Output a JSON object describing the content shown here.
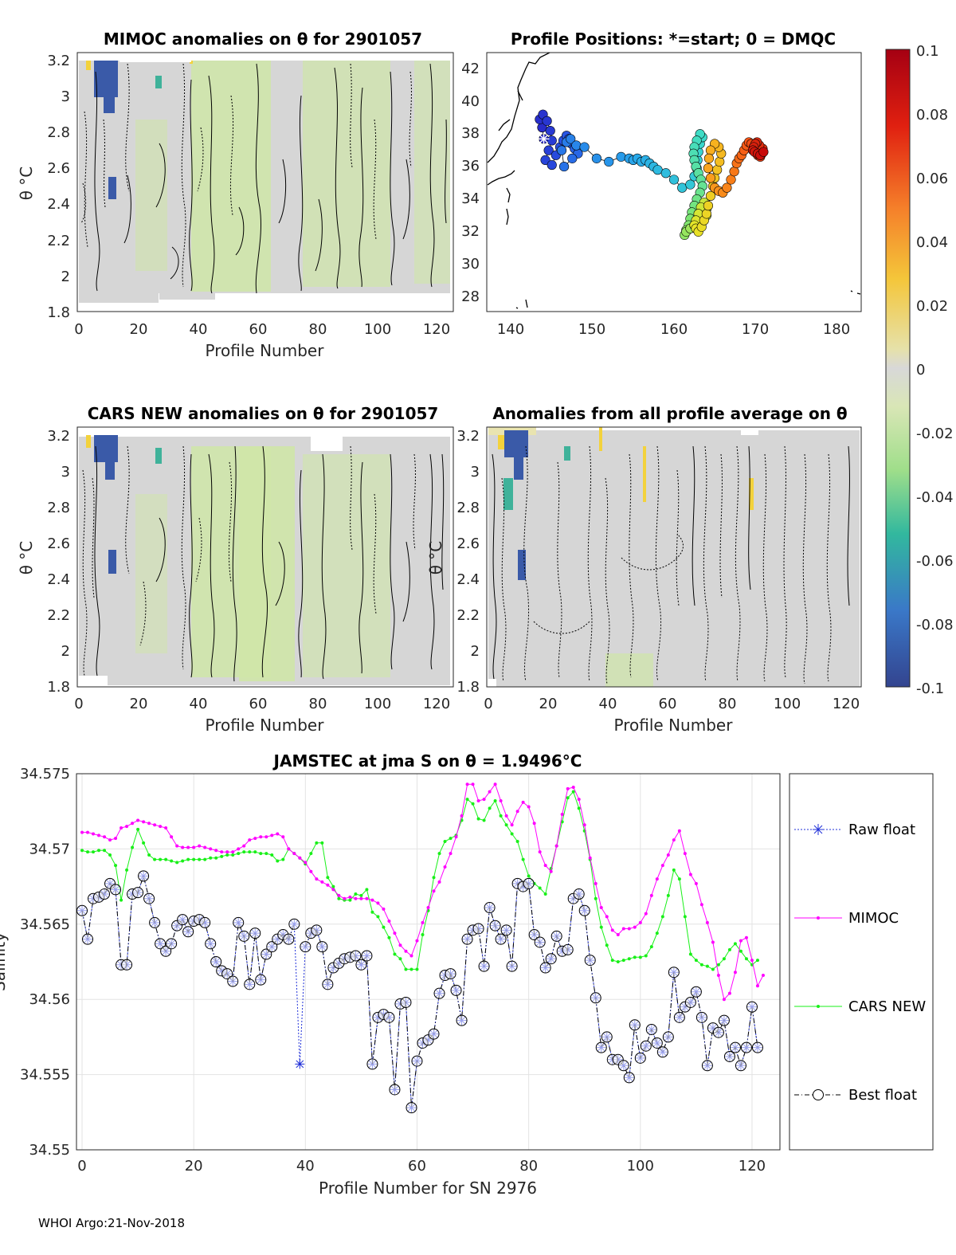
{
  "colors": {
    "raw": "#1f2fd8",
    "mimoc": "#ff00ff",
    "cars": "#18f018",
    "best": "#000050",
    "anomaly_bg": "#d6d6d6",
    "anomaly_green": "#cfe6a8"
  },
  "footer": "WHOI Argo:21-Nov-2018",
  "panels": {
    "mimoc": {
      "title": "MIMOC anomalies on θ  for 2901057",
      "ylabel": "θ °C",
      "xlabel": "Profile Number",
      "xticks": [
        "0",
        "20",
        "40",
        "60",
        "80",
        "100",
        "120"
      ],
      "yticks": [
        "1.8",
        "2",
        "2.2",
        "2.4",
        "2.6",
        "2.8",
        "3",
        "3.2"
      ]
    },
    "positions": {
      "title": "Profile Positions: *=start; 0 = DMQC",
      "xticks": [
        "140",
        "150",
        "160",
        "170",
        "180"
      ],
      "yticks": [
        "28",
        "30",
        "32",
        "34",
        "36",
        "38",
        "40",
        "42"
      ]
    },
    "cars": {
      "title": "CARS NEW anomalies on θ for 2901057",
      "ylabel": "θ °C",
      "xlabel": "Profile Number",
      "xticks": [
        "0",
        "20",
        "40",
        "60",
        "80",
        "100",
        "120"
      ],
      "yticks": [
        "1.8",
        "2",
        "2.2",
        "2.4",
        "2.6",
        "2.8",
        "3",
        "3.2"
      ]
    },
    "allavg": {
      "title": "Anomalies from all profile average on θ",
      "ylabel": "θ °C",
      "xlabel": "Profile Number",
      "xticks": [
        "0",
        "20",
        "40",
        "60",
        "80",
        "100",
        "120"
      ],
      "yticks": [
        "1.8",
        "2",
        "2.2",
        "2.4",
        "2.6",
        "2.8",
        "3",
        "3.2"
      ]
    },
    "colorbar": {
      "ticks": [
        "0.1",
        "0.08",
        "0.06",
        "0.04",
        "0.02",
        "0",
        "-0.02",
        "-0.04",
        "-0.06",
        "-0.08",
        "-0.1"
      ]
    }
  },
  "chart_data": {
    "type": "line",
    "title": "JAMSTEC at jma S on θ = 1.9496°C",
    "xlabel": "Profile Number for SN 2976",
    "ylabel": "Salinity",
    "xlim": [
      -1,
      125
    ],
    "ylim": [
      34.55,
      34.575
    ],
    "xticks": [
      "0",
      "20",
      "40",
      "60",
      "80",
      "100",
      "120"
    ],
    "yticks": [
      "34.55",
      "34.555",
      "34.56",
      "34.565",
      "34.57",
      "34.575"
    ],
    "grid": true,
    "legend": [
      "Raw float",
      "MIMOC",
      "CARS NEW",
      "Best float"
    ],
    "legend_position": "outside-right",
    "x_start": 0,
    "series": [
      {
        "name": "Raw float",
        "values": [
          34.5659,
          34.564,
          34.5667,
          34.5668,
          34.567,
          34.5677,
          34.5673,
          34.5623,
          34.5623,
          34.567,
          34.5671,
          34.5682,
          34.5667,
          34.5651,
          34.5637,
          34.5632,
          34.5637,
          34.5649,
          34.5653,
          34.5645,
          34.5652,
          34.5653,
          34.5651,
          34.5637,
          34.5625,
          34.5619,
          34.5617,
          34.5612,
          34.5651,
          34.5642,
          34.561,
          34.5644,
          34.5613,
          34.563,
          34.5635,
          34.564,
          34.5643,
          34.564,
          34.565,
          34.5557,
          34.5635,
          34.5644,
          34.5646,
          34.5635,
          34.561,
          34.5621,
          34.5624,
          34.5627,
          34.5628,
          34.5629,
          34.5623,
          34.5629,
          34.5557,
          34.5588,
          34.559,
          34.5588,
          34.554,
          34.5597,
          34.5598,
          34.5528,
          34.5559,
          34.5571,
          34.5573,
          34.5577,
          34.5604,
          34.5616,
          34.5617,
          34.5606,
          34.5586,
          34.564,
          34.5646,
          34.5647,
          34.5622,
          34.5661,
          34.5649,
          34.564,
          34.5646,
          34.5622,
          34.5677,
          34.5675,
          34.5677,
          34.5643,
          34.5638,
          34.5621,
          34.5627,
          34.5642,
          34.5632,
          34.5633,
          34.5667,
          34.567,
          34.5659,
          34.5626,
          34.5601,
          34.5568,
          34.5575,
          34.556,
          34.556,
          34.5556,
          34.5548,
          34.5583,
          34.5561,
          34.5569,
          34.558,
          34.5571,
          34.5565,
          34.5575,
          34.5618,
          34.5588,
          34.5595,
          34.5598,
          34.5605,
          34.5588,
          34.5556,
          34.5581,
          34.5578,
          34.5586,
          34.5562,
          34.5568,
          34.5556,
          34.5568,
          34.5595,
          34.5568
        ]
      },
      {
        "name": "MIMOC",
        "values": [
          34.5711,
          34.5711,
          34.571,
          34.5709,
          34.5708,
          34.5706,
          34.5707,
          34.5714,
          34.5715,
          34.5717,
          34.5719,
          34.5718,
          34.5717,
          34.5716,
          34.5715,
          34.5714,
          34.5708,
          34.5702,
          34.5701,
          34.5701,
          34.5701,
          34.5702,
          34.5701,
          34.57,
          34.5699,
          34.5698,
          34.5698,
          34.5698,
          34.57,
          34.5702,
          34.5706,
          34.5707,
          34.5708,
          34.5708,
          34.5709,
          34.571,
          34.5708,
          34.57,
          34.5697,
          34.5694,
          34.5691,
          34.5685,
          34.568,
          34.5678,
          34.5676,
          34.5673,
          34.5669,
          34.5667,
          34.5668,
          34.5667,
          34.5667,
          34.5667,
          34.5666,
          34.5664,
          34.566,
          34.5652,
          34.5644,
          34.5636,
          34.5632,
          34.5629,
          34.5639,
          34.5651,
          34.5661,
          34.5672,
          34.5678,
          34.5688,
          34.5697,
          34.5708,
          34.5722,
          34.5743,
          34.5743,
          34.5732,
          34.5733,
          34.5738,
          34.5743,
          34.5732,
          34.5722,
          34.5716,
          34.5725,
          34.5731,
          34.5728,
          34.5717,
          34.5698,
          34.5689,
          34.5685,
          34.5702,
          34.5723,
          34.574,
          34.5741,
          34.5733,
          34.5716,
          34.5694,
          34.5677,
          34.5661,
          34.5655,
          34.5646,
          34.5643,
          34.5647,
          34.5647,
          34.5648,
          34.5651,
          34.5657,
          34.5669,
          34.568,
          34.5689,
          34.5696,
          34.5706,
          34.5712,
          34.5697,
          34.5683,
          34.5677,
          34.5663,
          34.5651,
          34.5638,
          34.5616,
          34.56,
          34.5604,
          34.5618,
          34.5639,
          34.5641,
          34.5626,
          34.5609,
          34.5616
        ]
      },
      {
        "name": "CARS NEW",
        "values": [
          34.5699,
          34.5698,
          34.5698,
          34.5699,
          34.5699,
          34.5696,
          34.5689,
          34.5666,
          34.5686,
          34.5701,
          34.5713,
          34.5704,
          34.5696,
          34.5693,
          34.5693,
          34.5693,
          34.5692,
          34.5691,
          34.5692,
          34.5693,
          34.5693,
          34.5693,
          34.5693,
          34.5694,
          34.5694,
          34.5695,
          34.5696,
          34.5696,
          34.5697,
          34.5698,
          34.5698,
          34.5698,
          34.5697,
          34.5697,
          34.5696,
          34.5692,
          34.5693,
          34.57,
          34.5697,
          34.5694,
          34.569,
          34.5697,
          34.5704,
          34.5704,
          34.5681,
          34.5675,
          34.5667,
          34.5666,
          34.5666,
          34.567,
          34.5669,
          34.5673,
          34.5658,
          34.5655,
          34.5648,
          34.5641,
          34.563,
          34.5627,
          34.562,
          34.562,
          34.562,
          34.5643,
          34.5659,
          34.5681,
          34.5697,
          34.5705,
          34.5707,
          34.5709,
          34.5719,
          34.5733,
          34.573,
          34.572,
          34.5719,
          34.5727,
          34.5732,
          34.5722,
          34.5716,
          34.571,
          34.5705,
          34.5693,
          34.5682,
          34.5677,
          34.5674,
          34.567,
          34.5687,
          34.5702,
          34.5718,
          34.5734,
          34.5738,
          34.5727,
          34.5712,
          34.5693,
          34.5667,
          34.5648,
          34.5636,
          34.5626,
          34.5625,
          34.5626,
          34.5627,
          34.5628,
          34.5628,
          34.5629,
          34.5635,
          34.5644,
          34.5655,
          34.5669,
          34.5686,
          34.568,
          34.5655,
          34.563,
          34.5626,
          34.5623,
          34.5622,
          34.562,
          34.5623,
          34.5627,
          34.5633,
          34.5637,
          34.5632,
          34.5627,
          34.5623,
          34.5626
        ]
      },
      {
        "name": "Best float",
        "values": [
          34.5659,
          34.564,
          34.5667,
          34.5668,
          34.567,
          34.5677,
          34.5673,
          34.5623,
          34.5623,
          34.567,
          34.5671,
          34.5682,
          34.5667,
          34.5651,
          34.5637,
          34.5632,
          34.5637,
          34.5649,
          34.5653,
          34.5645,
          34.5652,
          34.5653,
          34.5651,
          34.5637,
          34.5625,
          34.5619,
          34.5617,
          34.5612,
          34.5651,
          34.5642,
          34.561,
          34.5644,
          34.5613,
          34.563,
          34.5635,
          34.564,
          34.5643,
          34.564,
          34.565,
          null,
          34.5635,
          34.5644,
          34.5646,
          34.5635,
          34.561,
          34.5621,
          34.5624,
          34.5627,
          34.5628,
          34.5629,
          34.5623,
          34.5629,
          34.5557,
          34.5588,
          34.559,
          34.5588,
          34.554,
          34.5597,
          34.5598,
          34.5528,
          34.5559,
          34.5571,
          34.5573,
          34.5577,
          34.5604,
          34.5616,
          34.5617,
          34.5606,
          34.5586,
          34.564,
          34.5646,
          34.5647,
          34.5622,
          34.5661,
          34.5649,
          34.564,
          34.5646,
          34.5622,
          34.5677,
          34.5675,
          34.5677,
          34.5643,
          34.5638,
          34.5621,
          34.5627,
          34.5642,
          34.5632,
          34.5633,
          34.5667,
          34.567,
          34.5659,
          34.5626,
          34.5601,
          34.5568,
          34.5575,
          34.556,
          34.556,
          34.5556,
          34.5548,
          34.5583,
          34.5561,
          34.5569,
          34.558,
          34.5571,
          34.5565,
          34.5575,
          34.5618,
          34.5588,
          34.5595,
          34.5598,
          34.5605,
          34.5588,
          34.5556,
          34.5581,
          34.5578,
          34.5586,
          34.5562,
          34.5568,
          34.5556,
          34.5568,
          34.5595,
          34.5568
        ]
      }
    ],
    "positions": {
      "lon": [
        144.0,
        143.8,
        143.5,
        143.9,
        144.4,
        144.8,
        145.0,
        144.6,
        144.2,
        145.0,
        145.5,
        146.0,
        146.4,
        146.8,
        147.1,
        147.4,
        147.8,
        148.2,
        147.5,
        146.5,
        146.2,
        146.8,
        147.3,
        148.0,
        149.0,
        150.5,
        152.0,
        153.5,
        154.5,
        155.0,
        155.5,
        156.0,
        156.5,
        157.0,
        157.5,
        158.0,
        159.0,
        160.0,
        161.0,
        162.0,
        162.5,
        162.8,
        162.9,
        163.0,
        163.2,
        163.5,
        163.2,
        162.8,
        162.5,
        162.4,
        162.5,
        162.7,
        163.0,
        163.3,
        163.5,
        163.2,
        162.8,
        162.5,
        162.2,
        162.0,
        161.8,
        161.5,
        161.3,
        161.5,
        162.0,
        162.5,
        163.0,
        163.5,
        164.0,
        164.0,
        163.7,
        163.3,
        163.0,
        162.7,
        162.5,
        162.7,
        163.0,
        163.4,
        163.7,
        164.0,
        164.2,
        164.5,
        164.8,
        165.0,
        165.3,
        165.6,
        165.8,
        165.5,
        165.0,
        164.5,
        164.3,
        164.2,
        164.5,
        165.0,
        165.5,
        166.0,
        166.5,
        167.0,
        167.4,
        167.7,
        168.0,
        168.3,
        168.6,
        168.9,
        169.2,
        169.5,
        169.8,
        170.0,
        170.3,
        170.6,
        170.8,
        170.9,
        170.5,
        170.2,
        170.0,
        169.8,
        169.7,
        169.9,
        170.3,
        170.6,
        171.0
      ],
      "lat": [
        37.3,
        38.0,
        38.5,
        38.8,
        38.4,
        37.8,
        37.2,
        36.6,
        36.0,
        35.7,
        36.3,
        36.8,
        37.2,
        37.5,
        37.3,
        37.0,
        36.7,
        36.4,
        36.1,
        35.6,
        36.6,
        37.1,
        37.3,
        36.9,
        36.8,
        36.1,
        35.9,
        36.2,
        36.1,
        36.0,
        36.1,
        35.9,
        36.0,
        35.8,
        35.6,
        35.4,
        35.2,
        34.8,
        34.3,
        34.5,
        35.0,
        35.5,
        36.0,
        36.5,
        37.0,
        37.4,
        37.6,
        37.2,
        36.8,
        36.4,
        36.0,
        35.6,
        35.2,
        34.8,
        34.4,
        34.0,
        33.6,
        33.2,
        32.8,
        32.4,
        32.0,
        31.7,
        31.4,
        31.6,
        31.8,
        32.0,
        32.2,
        32.4,
        32.6,
        33.0,
        33.4,
        33.1,
        32.7,
        32.3,
        32.0,
        31.8,
        31.6,
        31.9,
        32.3,
        32.7,
        33.2,
        33.8,
        34.4,
        34.9,
        35.4,
        35.9,
        36.4,
        36.8,
        37.0,
        36.6,
        36.1,
        35.5,
        34.9,
        34.3,
        34.1,
        34.0,
        34.3,
        34.8,
        35.3,
        35.8,
        36.1,
        36.3,
        36.6,
        36.9,
        37.1,
        37.0,
        36.8,
        36.5,
        36.3,
        36.2,
        36.4,
        36.7,
        36.9,
        37.1,
        37.0,
        36.8,
        36.6,
        36.5,
        36.4,
        36.3,
        36.5
      ]
    }
  }
}
